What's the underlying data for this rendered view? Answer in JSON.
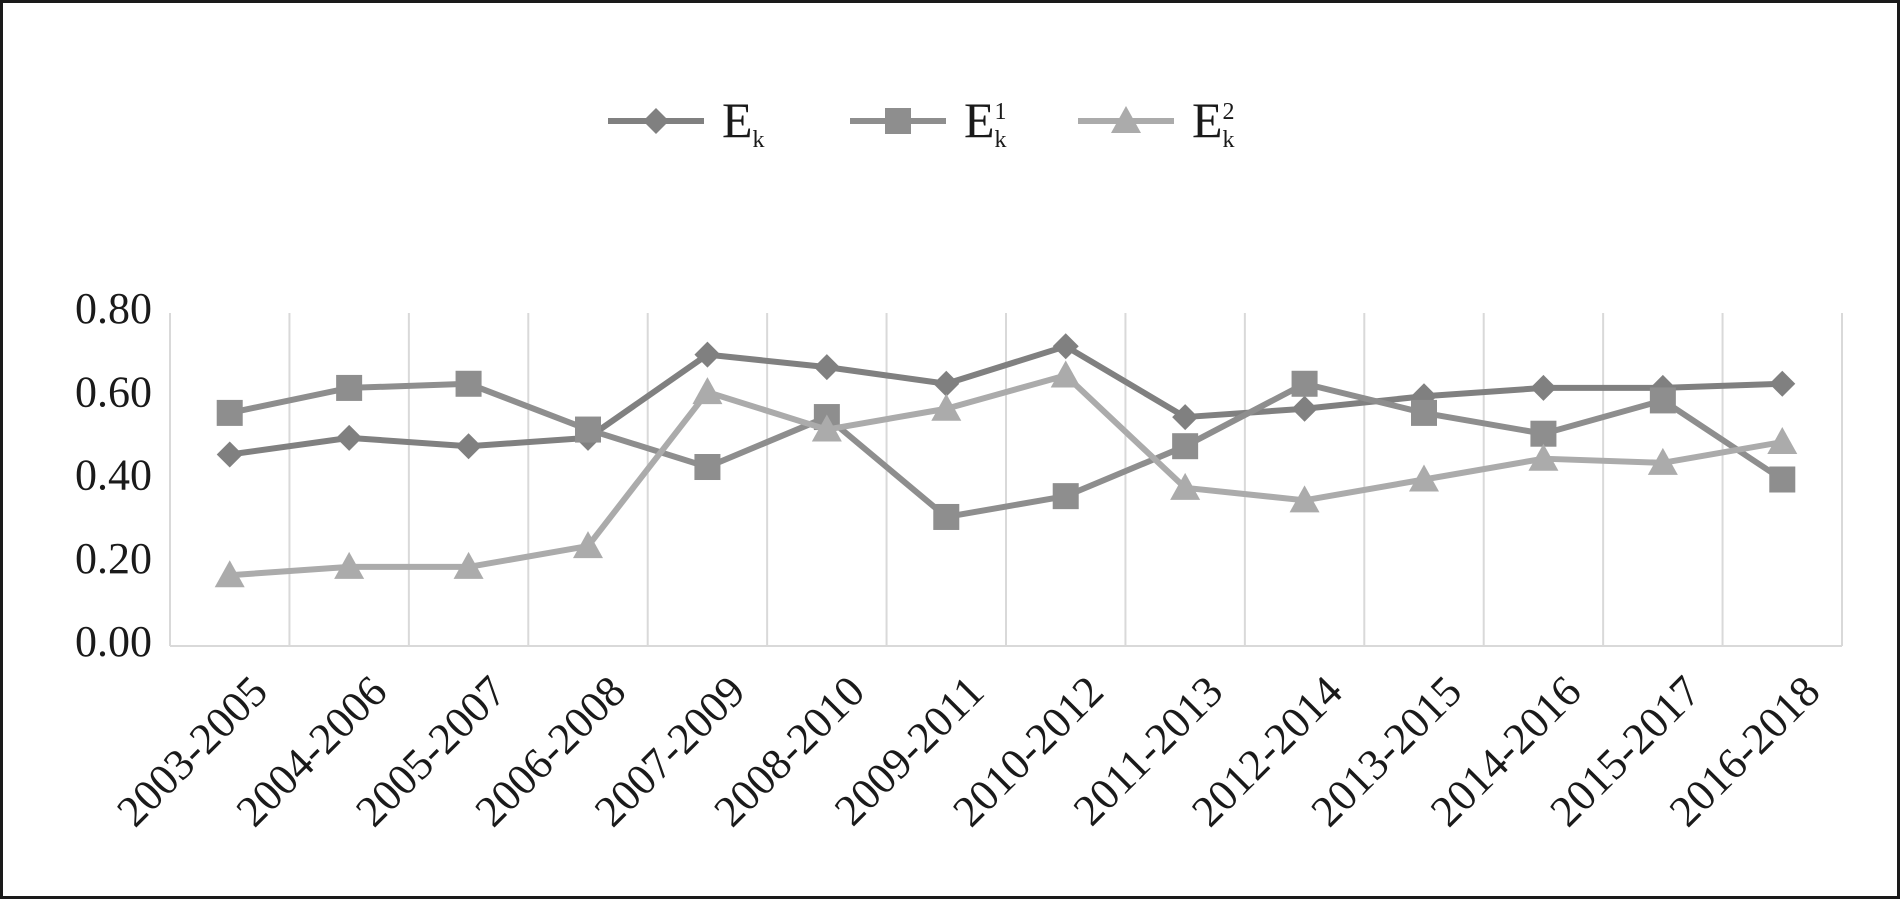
{
  "chart_data": {
    "type": "line",
    "categories": [
      "2003-2005",
      "2004-2006",
      "2005-2007",
      "2006-2008",
      "2007-2009",
      "2008-2010",
      "2009-2011",
      "2010-2012",
      "2011-2013",
      "2012-2014",
      "2013-2015",
      "2014-2016",
      "2015-2017",
      "2016-2018"
    ],
    "series": [
      {
        "name": "Ek",
        "color": "#808080",
        "marker": "diamond",
        "values": [
          0.46,
          0.5,
          0.48,
          0.5,
          0.7,
          0.67,
          0.63,
          0.72,
          0.55,
          0.57,
          0.6,
          0.62,
          0.62,
          0.63
        ]
      },
      {
        "name": "Ek1",
        "color": "#8e8e8e",
        "marker": "square",
        "values": [
          0.56,
          0.62,
          0.63,
          0.52,
          0.43,
          0.55,
          0.31,
          0.36,
          0.48,
          0.63,
          0.56,
          0.51,
          0.59,
          0.4
        ]
      },
      {
        "name": "Ek2",
        "color": "#ababab",
        "marker": "triangle",
        "values": [
          0.17,
          0.19,
          0.19,
          0.24,
          0.61,
          0.52,
          0.57,
          0.65,
          0.38,
          0.35,
          0.4,
          0.45,
          0.44,
          0.49
        ]
      }
    ],
    "ylim": [
      0,
      0.8
    ],
    "yticks": [
      {
        "value": 0,
        "label": "0.00"
      },
      {
        "value": 0.2,
        "label": "0.20"
      },
      {
        "value": 0.4,
        "label": "0.40"
      },
      {
        "value": 0.6,
        "label": "0.60"
      },
      {
        "value": 0.8,
        "label": "0.80"
      }
    ],
    "grid": true,
    "legend": "top"
  }
}
